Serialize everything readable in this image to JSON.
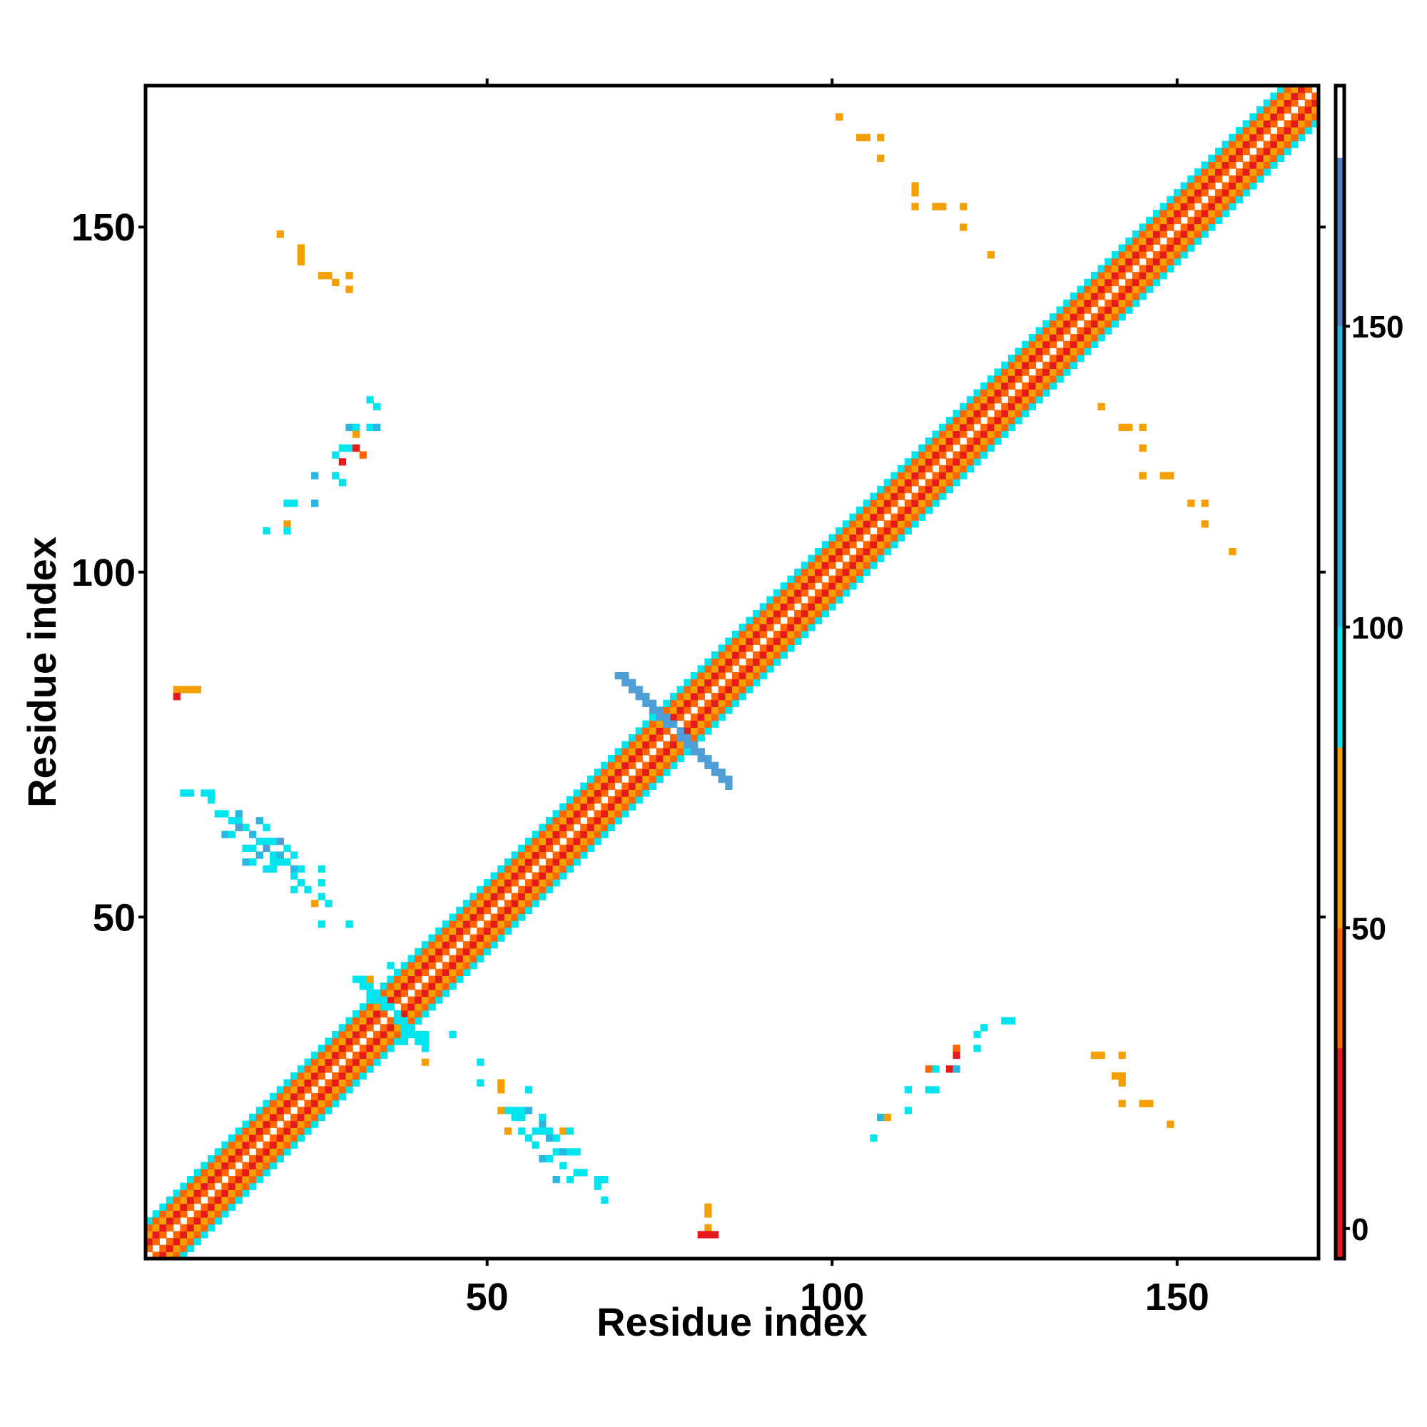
{
  "chart_data": {
    "type": "heatmap",
    "title": "",
    "xlabel": "Residue index",
    "ylabel": "Residue index",
    "xlim": [
      1,
      170
    ],
    "ylim": [
      1,
      170
    ],
    "xticks": [
      50,
      100,
      150
    ],
    "yticks": [
      50,
      100,
      150
    ],
    "grid": false,
    "legend": "colorbar-right",
    "colorbar": {
      "ticks": [
        0,
        50,
        100,
        150
      ],
      "range": [
        -5,
        190
      ],
      "bands": [
        {
          "from": -5,
          "to": 30,
          "color": "#e41a1c"
        },
        {
          "from": 30,
          "to": 50,
          "color": "#ff6600"
        },
        {
          "from": 50,
          "to": 80,
          "color": "#f5a000"
        },
        {
          "from": 80,
          "to": 100,
          "color": "#00e5ee"
        },
        {
          "from": 100,
          "to": 150,
          "color": "#29b6e0"
        },
        {
          "from": 150,
          "to": 178,
          "color": "#4f7fbf"
        },
        {
          "from": 178,
          "to": 190,
          "color": "#ffffff"
        }
      ]
    },
    "diagonal": {
      "from": 1,
      "to": 170,
      "offset_colors": [
        "#ffffff",
        "#ff6600",
        "#e41a1c",
        "#f5a000",
        "#ff6600",
        "#00e5ee"
      ],
      "cross_contacts": [
        {
          "center": 36,
          "color": "#00e5ee",
          "half_length": 5
        },
        {
          "center": 77,
          "color": "#4f9fd6",
          "half_length": 8
        }
      ]
    },
    "contacts": [
      {
        "x": 20,
        "y": 149,
        "color": "#f5a000"
      },
      {
        "x": 23,
        "y": 147,
        "color": "#f5a000"
      },
      {
        "x": 23,
        "y": 146,
        "color": "#f5a000"
      },
      {
        "x": 23,
        "y": 145,
        "color": "#f5a000"
      },
      {
        "x": 26,
        "y": 143,
        "color": "#f5a000"
      },
      {
        "x": 27,
        "y": 143,
        "color": "#f5a000"
      },
      {
        "x": 28,
        "y": 142,
        "color": "#f5a000"
      },
      {
        "x": 30,
        "y": 143,
        "color": "#f5a000"
      },
      {
        "x": 30,
        "y": 141,
        "color": "#f5a000"
      },
      {
        "x": 33,
        "y": 125,
        "color": "#00e5ee"
      },
      {
        "x": 34,
        "y": 124,
        "color": "#00e5ee"
      },
      {
        "x": 33,
        "y": 121,
        "color": "#00e5ee"
      },
      {
        "x": 34,
        "y": 121,
        "color": "#29b6e0"
      },
      {
        "x": 30,
        "y": 121,
        "color": "#29b6e0"
      },
      {
        "x": 31,
        "y": 121,
        "color": "#00e5ee"
      },
      {
        "x": 31,
        "y": 120,
        "color": "#f5a000"
      },
      {
        "x": 29,
        "y": 118,
        "color": "#00e5ee"
      },
      {
        "x": 30,
        "y": 118,
        "color": "#00e5ee"
      },
      {
        "x": 31,
        "y": 118,
        "color": "#e41a1c"
      },
      {
        "x": 32,
        "y": 117,
        "color": "#ff6600"
      },
      {
        "x": 28,
        "y": 117,
        "color": "#00e5ee"
      },
      {
        "x": 29,
        "y": 116,
        "color": "#e41a1c"
      },
      {
        "x": 25,
        "y": 114,
        "color": "#29b6e0"
      },
      {
        "x": 28,
        "y": 114,
        "color": "#00e5ee"
      },
      {
        "x": 29,
        "y": 113,
        "color": "#00e5ee"
      },
      {
        "x": 21,
        "y": 110,
        "color": "#00e5ee"
      },
      {
        "x": 22,
        "y": 110,
        "color": "#00e5ee"
      },
      {
        "x": 25,
        "y": 110,
        "color": "#29b6e0"
      },
      {
        "x": 21,
        "y": 107,
        "color": "#f5a000"
      },
      {
        "x": 18,
        "y": 106,
        "color": "#00e5ee"
      },
      {
        "x": 21,
        "y": 106,
        "color": "#00e5ee"
      },
      {
        "x": 5,
        "y": 83,
        "color": "#f5a000"
      },
      {
        "x": 6,
        "y": 83,
        "color": "#f5a000"
      },
      {
        "x": 7,
        "y": 83,
        "color": "#f5a000"
      },
      {
        "x": 8,
        "y": 83,
        "color": "#f5a000"
      },
      {
        "x": 5,
        "y": 82,
        "color": "#e41a1c"
      },
      {
        "x": 6,
        "y": 68,
        "color": "#00e5ee"
      },
      {
        "x": 7,
        "y": 68,
        "color": "#00e5ee"
      },
      {
        "x": 9,
        "y": 68,
        "color": "#00e5ee"
      },
      {
        "x": 10,
        "y": 68,
        "color": "#00e5ee"
      },
      {
        "x": 10,
        "y": 67,
        "color": "#00e5ee"
      },
      {
        "x": 11,
        "y": 65,
        "color": "#00e5ee"
      },
      {
        "x": 12,
        "y": 65,
        "color": "#00e5ee"
      },
      {
        "x": 14,
        "y": 65,
        "color": "#29b6e0"
      },
      {
        "x": 13,
        "y": 64,
        "color": "#00e5ee"
      },
      {
        "x": 14,
        "y": 64,
        "color": "#00e5ee"
      },
      {
        "x": 17,
        "y": 64,
        "color": "#29b6e0"
      },
      {
        "x": 14,
        "y": 63,
        "color": "#4f9fd6"
      },
      {
        "x": 15,
        "y": 63,
        "color": "#00e5ee"
      },
      {
        "x": 18,
        "y": 63,
        "color": "#00e5ee"
      },
      {
        "x": 12,
        "y": 62,
        "color": "#29b6e0"
      },
      {
        "x": 13,
        "y": 62,
        "color": "#00e5ee"
      },
      {
        "x": 16,
        "y": 62,
        "color": "#29b6e0"
      },
      {
        "x": 17,
        "y": 61,
        "color": "#00e5ee"
      },
      {
        "x": 18,
        "y": 61,
        "color": "#00e5ee"
      },
      {
        "x": 19,
        "y": 61,
        "color": "#00e5ee"
      },
      {
        "x": 20,
        "y": 61,
        "color": "#4f9fd6"
      },
      {
        "x": 15,
        "y": 60,
        "color": "#00e5ee"
      },
      {
        "x": 16,
        "y": 60,
        "color": "#00e5ee"
      },
      {
        "x": 18,
        "y": 60,
        "color": "#4f9fd6"
      },
      {
        "x": 21,
        "y": 60,
        "color": "#00e5ee"
      },
      {
        "x": 17,
        "y": 59,
        "color": "#29b6e0"
      },
      {
        "x": 19,
        "y": 59,
        "color": "#00e5ee"
      },
      {
        "x": 20,
        "y": 59,
        "color": "#29b6e0"
      },
      {
        "x": 22,
        "y": 59,
        "color": "#00e5ee"
      },
      {
        "x": 15,
        "y": 58,
        "color": "#29b6e0"
      },
      {
        "x": 16,
        "y": 58,
        "color": "#00e5ee"
      },
      {
        "x": 19,
        "y": 58,
        "color": "#00e5ee"
      },
      {
        "x": 20,
        "y": 58,
        "color": "#00e5ee"
      },
      {
        "x": 21,
        "y": 58,
        "color": "#00e5ee"
      },
      {
        "x": 18,
        "y": 57,
        "color": "#00e5ee"
      },
      {
        "x": 19,
        "y": 57,
        "color": "#00e5ee"
      },
      {
        "x": 22,
        "y": 57,
        "color": "#29b6e0"
      },
      {
        "x": 23,
        "y": 57,
        "color": "#00e5ee"
      },
      {
        "x": 26,
        "y": 57,
        "color": "#00e5ee"
      },
      {
        "x": 22,
        "y": 56,
        "color": "#00e5ee"
      },
      {
        "x": 23,
        "y": 55,
        "color": "#00e5ee"
      },
      {
        "x": 26,
        "y": 55,
        "color": "#00e5ee"
      },
      {
        "x": 22,
        "y": 54,
        "color": "#00e5ee"
      },
      {
        "x": 24,
        "y": 54,
        "color": "#00e5ee"
      },
      {
        "x": 26,
        "y": 53,
        "color": "#00e5ee"
      },
      {
        "x": 25,
        "y": 52,
        "color": "#f5a000"
      },
      {
        "x": 27,
        "y": 52,
        "color": "#00e5ee"
      },
      {
        "x": 26,
        "y": 49,
        "color": "#00e5ee"
      },
      {
        "x": 30,
        "y": 49,
        "color": "#00e5ee"
      },
      {
        "x": 101,
        "y": 166,
        "color": "#f5a000"
      },
      {
        "x": 104,
        "y": 163,
        "color": "#f5a000"
      },
      {
        "x": 105,
        "y": 163,
        "color": "#f5a000"
      },
      {
        "x": 107,
        "y": 163,
        "color": "#f5a000"
      },
      {
        "x": 107,
        "y": 160,
        "color": "#f5a000"
      },
      {
        "x": 112,
        "y": 156,
        "color": "#f5a000"
      },
      {
        "x": 112,
        "y": 155,
        "color": "#f5a000"
      },
      {
        "x": 112,
        "y": 153,
        "color": "#f5a000"
      },
      {
        "x": 115,
        "y": 153,
        "color": "#f5a000"
      },
      {
        "x": 116,
        "y": 153,
        "color": "#f5a000"
      },
      {
        "x": 119,
        "y": 153,
        "color": "#f5a000"
      },
      {
        "x": 119,
        "y": 150,
        "color": "#f5a000"
      },
      {
        "x": 123,
        "y": 146,
        "color": "#f5a000"
      },
      {
        "x": 139,
        "y": 124,
        "color": "#f5a000"
      },
      {
        "x": 142,
        "y": 121,
        "color": "#f5a000"
      },
      {
        "x": 143,
        "y": 121,
        "color": "#f5a000"
      },
      {
        "x": 145,
        "y": 121,
        "color": "#f5a000"
      },
      {
        "x": 145,
        "y": 118,
        "color": "#f5a000"
      },
      {
        "x": 145,
        "y": 114,
        "color": "#f5a000"
      },
      {
        "x": 148,
        "y": 114,
        "color": "#f5a000"
      },
      {
        "x": 149,
        "y": 114,
        "color": "#f5a000"
      },
      {
        "x": 152,
        "y": 110,
        "color": "#f5a000"
      },
      {
        "x": 154,
        "y": 110,
        "color": "#f5a000"
      },
      {
        "x": 154,
        "y": 107,
        "color": "#f5a000"
      },
      {
        "x": 158,
        "y": 103,
        "color": "#f5a000"
      },
      {
        "x": 125,
        "y": 35,
        "color": "#00e5ee"
      },
      {
        "x": 126,
        "y": 35,
        "color": "#00e5ee"
      },
      {
        "x": 122,
        "y": 34,
        "color": "#00e5ee"
      },
      {
        "x": 121,
        "y": 33,
        "color": "#00e5ee"
      },
      {
        "x": 118,
        "y": 31,
        "color": "#f5a000"
      },
      {
        "x": 118,
        "y": 31,
        "color": "#ff6600"
      },
      {
        "x": 121,
        "y": 31,
        "color": "#00e5ee"
      },
      {
        "x": 118,
        "y": 30,
        "color": "#e41a1c"
      },
      {
        "x": 114,
        "y": 28,
        "color": "#ff6600"
      },
      {
        "x": 115,
        "y": 28,
        "color": "#00e5ee"
      },
      {
        "x": 117,
        "y": 28,
        "color": "#e41a1c"
      },
      {
        "x": 118,
        "y": 28,
        "color": "#29b6e0"
      },
      {
        "x": 111,
        "y": 25,
        "color": "#00e5ee"
      },
      {
        "x": 114,
        "y": 25,
        "color": "#00e5ee"
      },
      {
        "x": 115,
        "y": 25,
        "color": "#00e5ee"
      },
      {
        "x": 107,
        "y": 21,
        "color": "#29b6e0"
      },
      {
        "x": 108,
        "y": 21,
        "color": "#f5a000"
      },
      {
        "x": 111,
        "y": 22,
        "color": "#00e5ee"
      },
      {
        "x": 106,
        "y": 18,
        "color": "#00e5ee"
      },
      {
        "x": 138,
        "y": 30,
        "color": "#f5a000"
      },
      {
        "x": 139,
        "y": 30,
        "color": "#f5a000"
      },
      {
        "x": 142,
        "y": 30,
        "color": "#f5a000"
      },
      {
        "x": 141,
        "y": 27,
        "color": "#f5a000"
      },
      {
        "x": 142,
        "y": 27,
        "color": "#f5a000"
      },
      {
        "x": 142,
        "y": 26,
        "color": "#f5a000"
      },
      {
        "x": 142,
        "y": 23,
        "color": "#f5a000"
      },
      {
        "x": 145,
        "y": 23,
        "color": "#f5a000"
      },
      {
        "x": 146,
        "y": 23,
        "color": "#f5a000"
      },
      {
        "x": 149,
        "y": 20,
        "color": "#f5a000"
      },
      {
        "x": 36,
        "y": 43,
        "color": "#00e5ee"
      },
      {
        "x": 33,
        "y": 41,
        "color": "#f5a000"
      },
      {
        "x": 38,
        "y": 32,
        "color": "#00e5ee"
      },
      {
        "x": 41,
        "y": 33,
        "color": "#00e5ee"
      },
      {
        "x": 41,
        "y": 29,
        "color": "#f5a000"
      },
      {
        "x": 45,
        "y": 33,
        "color": "#00e5ee"
      },
      {
        "x": 49,
        "y": 29,
        "color": "#00e5ee"
      },
      {
        "x": 49,
        "y": 26,
        "color": "#00e5ee"
      },
      {
        "x": 52,
        "y": 26,
        "color": "#f5a000"
      },
      {
        "x": 52,
        "y": 25,
        "color": "#f5a000"
      },
      {
        "x": 56,
        "y": 25,
        "color": "#00e5ee"
      },
      {
        "x": 52,
        "y": 22,
        "color": "#f5a000"
      },
      {
        "x": 53,
        "y": 22,
        "color": "#00e5ee"
      },
      {
        "x": 54,
        "y": 22,
        "color": "#00e5ee"
      },
      {
        "x": 55,
        "y": 22,
        "color": "#00e5ee"
      },
      {
        "x": 56,
        "y": 22,
        "color": "#29b6e0"
      },
      {
        "x": 58,
        "y": 21,
        "color": "#00e5ee"
      },
      {
        "x": 54,
        "y": 21,
        "color": "#00e5ee"
      },
      {
        "x": 55,
        "y": 21,
        "color": "#00e5ee"
      },
      {
        "x": 58,
        "y": 20,
        "color": "#29b6e0"
      },
      {
        "x": 53,
        "y": 19,
        "color": "#f5a000"
      },
      {
        "x": 55,
        "y": 19,
        "color": "#00e5ee"
      },
      {
        "x": 57,
        "y": 19,
        "color": "#00e5ee"
      },
      {
        "x": 58,
        "y": 19,
        "color": "#00e5ee"
      },
      {
        "x": 59,
        "y": 19,
        "color": "#00e5ee"
      },
      {
        "x": 61,
        "y": 19,
        "color": "#f5a000"
      },
      {
        "x": 62,
        "y": 19,
        "color": "#00e5ee"
      },
      {
        "x": 56,
        "y": 18,
        "color": "#00e5ee"
      },
      {
        "x": 59,
        "y": 18,
        "color": "#29b6e0"
      },
      {
        "x": 60,
        "y": 18,
        "color": "#00e5ee"
      },
      {
        "x": 57,
        "y": 17,
        "color": "#00e5ee"
      },
      {
        "x": 60,
        "y": 16,
        "color": "#00e5ee"
      },
      {
        "x": 61,
        "y": 16,
        "color": "#29b6e0"
      },
      {
        "x": 62,
        "y": 16,
        "color": "#00e5ee"
      },
      {
        "x": 63,
        "y": 16,
        "color": "#00e5ee"
      },
      {
        "x": 58,
        "y": 15,
        "color": "#29b6e0"
      },
      {
        "x": 59,
        "y": 15,
        "color": "#00e5ee"
      },
      {
        "x": 61,
        "y": 14,
        "color": "#00e5ee"
      },
      {
        "x": 63,
        "y": 13,
        "color": "#00e5ee"
      },
      {
        "x": 64,
        "y": 13,
        "color": "#00e5ee"
      },
      {
        "x": 60,
        "y": 12,
        "color": "#29b6e0"
      },
      {
        "x": 62,
        "y": 12,
        "color": "#00e5ee"
      },
      {
        "x": 66,
        "y": 12,
        "color": "#00e5ee"
      },
      {
        "x": 67,
        "y": 12,
        "color": "#00e5ee"
      },
      {
        "x": 66,
        "y": 11,
        "color": "#00e5ee"
      },
      {
        "x": 67,
        "y": 9,
        "color": "#00e5ee"
      },
      {
        "x": 82,
        "y": 8,
        "color": "#f5a000"
      },
      {
        "x": 82,
        "y": 7,
        "color": "#f5a000"
      },
      {
        "x": 82,
        "y": 5,
        "color": "#f5a000"
      },
      {
        "x": 81,
        "y": 4,
        "color": "#e41a1c"
      },
      {
        "x": 82,
        "y": 4,
        "color": "#e41a1c"
      },
      {
        "x": 83,
        "y": 4,
        "color": "#e41a1c"
      }
    ]
  }
}
